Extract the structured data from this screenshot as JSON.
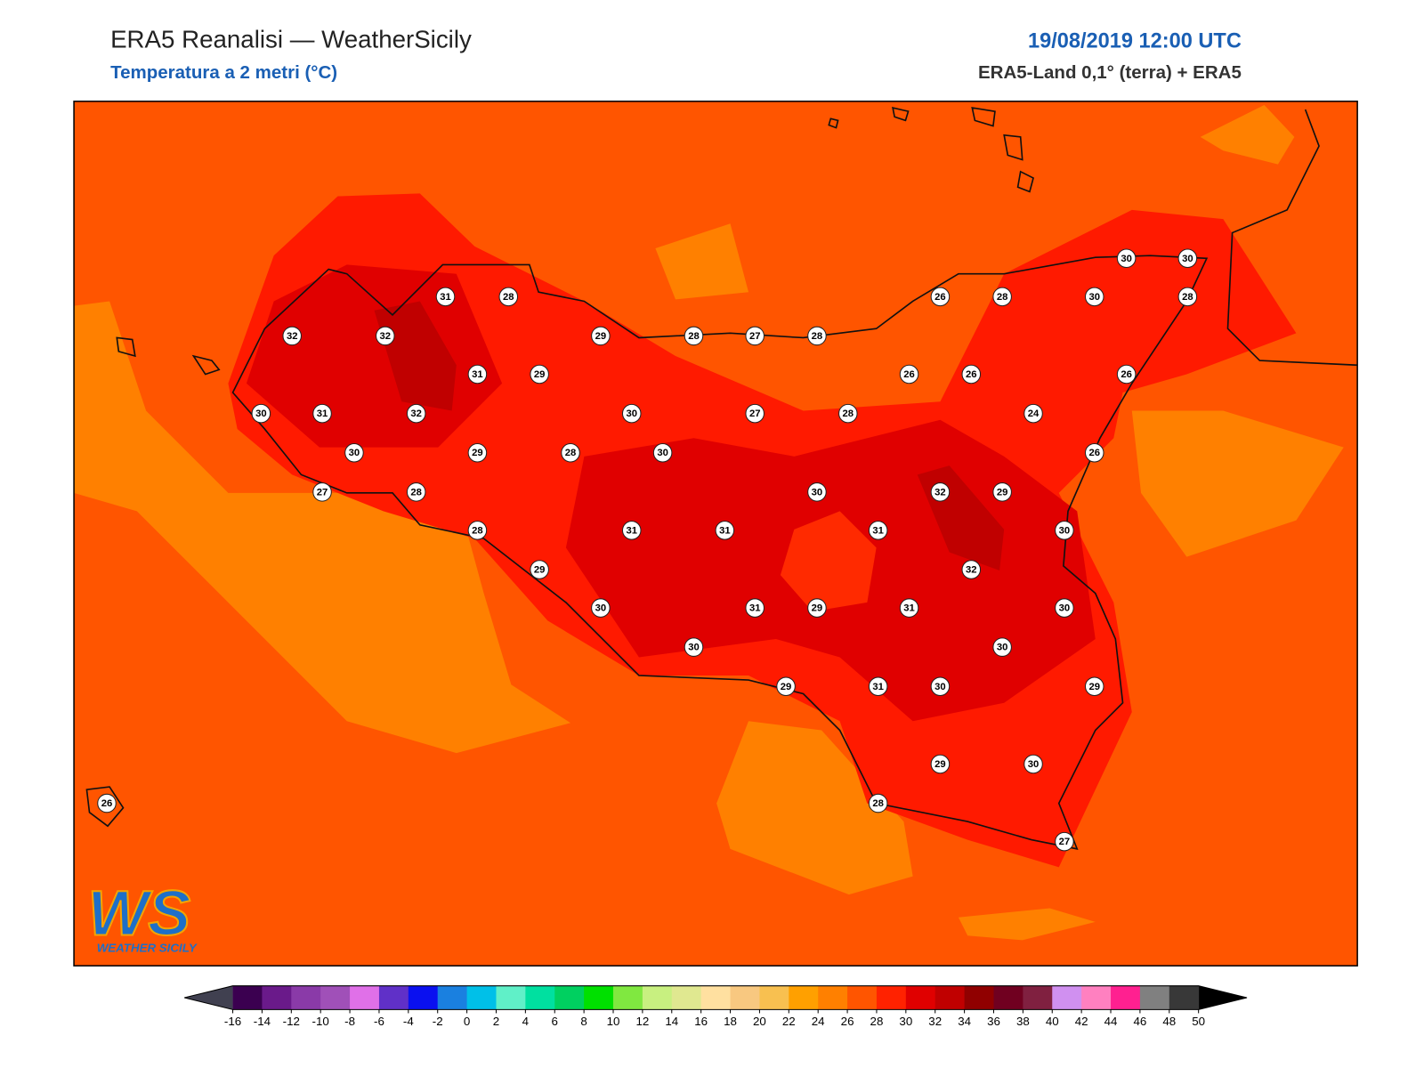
{
  "header": {
    "title": "ERA5 Reanalisi — WeatherSicily",
    "subtitle": "Temperatura a 2 metri (°C)",
    "datetime": "19/08/2019 12:00 UTC",
    "source": "ERA5-Land 0,1° (terra) + ERA5"
  },
  "stations": {
    "values": [
      31,
      28,
      32,
      32,
      29,
      28,
      27,
      28,
      26,
      28,
      30,
      30,
      30,
      28,
      31,
      29,
      26,
      26,
      26,
      30,
      31,
      32,
      30,
      27,
      28,
      24,
      30,
      29,
      28,
      30,
      26,
      27,
      28,
      30,
      32,
      29,
      28,
      31,
      31,
      31,
      30,
      29,
      32,
      30,
      31,
      29,
      31,
      30,
      30,
      30,
      29,
      31,
      30,
      29,
      29,
      30,
      28,
      27,
      26
    ]
  },
  "colorbar": {
    "ticks": [
      -16,
      -14,
      -12,
      -10,
      -8,
      -6,
      -4,
      -2,
      0,
      2,
      4,
      6,
      8,
      10,
      12,
      14,
      16,
      18,
      20,
      22,
      24,
      26,
      28,
      30,
      32,
      34,
      36,
      38,
      40,
      42,
      44,
      46,
      48,
      50
    ],
    "colors": [
      "#3b0050",
      "#6a1a8a",
      "#8a3aa8",
      "#a050b8",
      "#e070e8",
      "#6030c8",
      "#0a10f0",
      "#1a80e0",
      "#00c0e8",
      "#60f0c8",
      "#00e0a0",
      "#00d060",
      "#00e000",
      "#80e840",
      "#c8f080",
      "#e0e890",
      "#ffe0a0",
      "#f8c880",
      "#f8c050",
      "#ffa000",
      "#ff8000",
      "#ff5500",
      "#ff2200",
      "#e00000",
      "#c00000",
      "#900000",
      "#700020",
      "#802040",
      "#d090f0",
      "#ff80c0",
      "#ff2090",
      "#808080",
      "#383838"
    ],
    "under_color": "#404050",
    "over_color": "#000000"
  },
  "logo": {
    "mark": "WS",
    "text": "WEATHER SICILY"
  }
}
